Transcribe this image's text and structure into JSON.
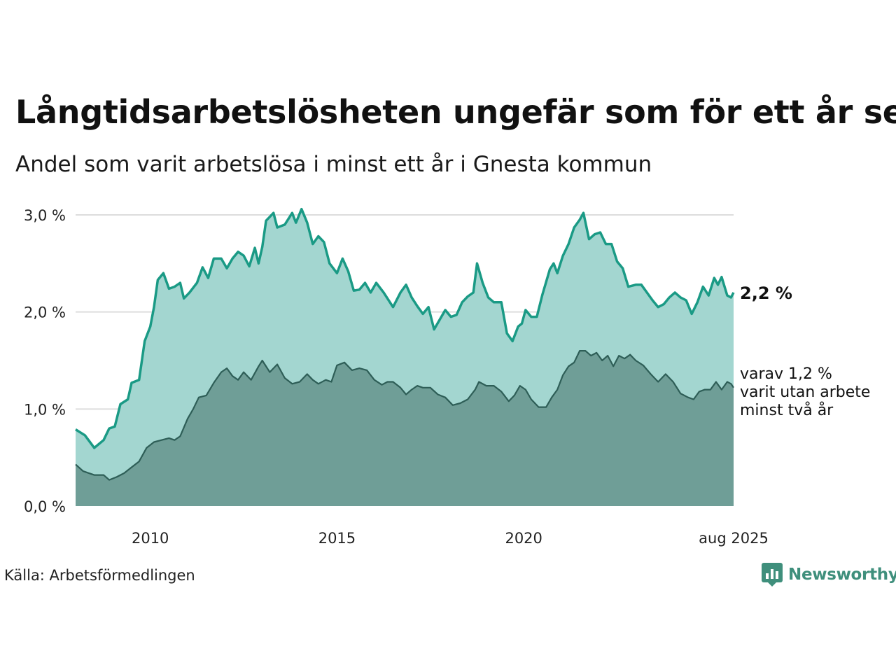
{
  "title": "Långtidsarbetslösheten ungefär som för ett år sen",
  "subtitle": "Andel som varit arbetslösa i minst ett år i Gnesta kommun",
  "source": "Källa: Arbetsförmedlingen",
  "logo_text": "Newsworthy",
  "colors": {
    "series1_line": "#1a9a85",
    "series1_fill": "#a3d6d0",
    "series2_line": "#2e5e57",
    "series2_fill": "#6f9e97",
    "grid": "#dddddd",
    "logo": "#3f8f7c"
  },
  "annotations": {
    "series1_end_label": "2,2 %",
    "series2_end_label_lines": [
      "varav 1,2 %",
      "varit utan arbete",
      "minst två år"
    ]
  },
  "chart_data": {
    "type": "area",
    "x_unit": "year",
    "xlim": [
      2008.0,
      2025.62
    ],
    "ylim": [
      0,
      3.0
    ],
    "y_ticks": [
      0,
      1,
      2,
      3
    ],
    "y_tick_labels": [
      "0,0 %",
      "1,0 %",
      "2,0 %",
      "3,0 %"
    ],
    "x_ticks": [
      2010,
      2015,
      2020,
      2025.62
    ],
    "x_tick_labels": [
      "2010",
      "2015",
      "2020",
      "aug 2025"
    ],
    "grid": true,
    "series": [
      {
        "name": "",
        "points": [
          [
            2008.0,
            0.79
          ],
          [
            2008.25,
            0.73
          ],
          [
            2008.5,
            0.6
          ],
          [
            2008.75,
            0.68
          ],
          [
            2008.9,
            0.8
          ],
          [
            2009.05,
            0.82
          ],
          [
            2009.2,
            1.05
          ],
          [
            2009.4,
            1.1
          ],
          [
            2009.5,
            1.27
          ],
          [
            2009.7,
            1.3
          ],
          [
            2009.85,
            1.7
          ],
          [
            2010.0,
            1.85
          ],
          [
            2010.1,
            2.05
          ],
          [
            2010.2,
            2.33
          ],
          [
            2010.35,
            2.4
          ],
          [
            2010.5,
            2.24
          ],
          [
            2010.65,
            2.26
          ],
          [
            2010.8,
            2.3
          ],
          [
            2010.9,
            2.14
          ],
          [
            2011.05,
            2.2
          ],
          [
            2011.25,
            2.3
          ],
          [
            2011.4,
            2.46
          ],
          [
            2011.55,
            2.35
          ],
          [
            2011.7,
            2.55
          ],
          [
            2011.9,
            2.55
          ],
          [
            2012.05,
            2.45
          ],
          [
            2012.2,
            2.55
          ],
          [
            2012.35,
            2.62
          ],
          [
            2012.5,
            2.58
          ],
          [
            2012.65,
            2.47
          ],
          [
            2012.8,
            2.66
          ],
          [
            2012.9,
            2.5
          ],
          [
            2013.0,
            2.67
          ],
          [
            2013.1,
            2.94
          ],
          [
            2013.3,
            3.02
          ],
          [
            2013.4,
            2.87
          ],
          [
            2013.6,
            2.9
          ],
          [
            2013.8,
            3.02
          ],
          [
            2013.9,
            2.92
          ],
          [
            2014.05,
            3.06
          ],
          [
            2014.2,
            2.92
          ],
          [
            2014.35,
            2.7
          ],
          [
            2014.5,
            2.78
          ],
          [
            2014.65,
            2.72
          ],
          [
            2014.8,
            2.5
          ],
          [
            2015.0,
            2.4
          ],
          [
            2015.15,
            2.55
          ],
          [
            2015.3,
            2.42
          ],
          [
            2015.45,
            2.22
          ],
          [
            2015.6,
            2.23
          ],
          [
            2015.75,
            2.3
          ],
          [
            2015.9,
            2.2
          ],
          [
            2016.05,
            2.3
          ],
          [
            2016.25,
            2.2
          ],
          [
            2016.5,
            2.05
          ],
          [
            2016.7,
            2.2
          ],
          [
            2016.85,
            2.28
          ],
          [
            2017.0,
            2.15
          ],
          [
            2017.15,
            2.06
          ],
          [
            2017.3,
            1.98
          ],
          [
            2017.45,
            2.05
          ],
          [
            2017.6,
            1.82
          ],
          [
            2017.75,
            1.92
          ],
          [
            2017.9,
            2.02
          ],
          [
            2018.05,
            1.95
          ],
          [
            2018.2,
            1.97
          ],
          [
            2018.35,
            2.1
          ],
          [
            2018.5,
            2.16
          ],
          [
            2018.65,
            2.2
          ],
          [
            2018.75,
            2.5
          ],
          [
            2018.9,
            2.3
          ],
          [
            2019.05,
            2.15
          ],
          [
            2019.2,
            2.1
          ],
          [
            2019.4,
            2.1
          ],
          [
            2019.55,
            1.78
          ],
          [
            2019.7,
            1.7
          ],
          [
            2019.85,
            1.85
          ],
          [
            2019.95,
            1.88
          ],
          [
            2020.05,
            2.02
          ],
          [
            2020.2,
            1.95
          ],
          [
            2020.35,
            1.95
          ],
          [
            2020.5,
            2.18
          ],
          [
            2020.7,
            2.44
          ],
          [
            2020.8,
            2.5
          ],
          [
            2020.9,
            2.4
          ],
          [
            2021.05,
            2.58
          ],
          [
            2021.2,
            2.7
          ],
          [
            2021.35,
            2.87
          ],
          [
            2021.5,
            2.95
          ],
          [
            2021.6,
            3.02
          ],
          [
            2021.75,
            2.75
          ],
          [
            2021.9,
            2.8
          ],
          [
            2022.05,
            2.82
          ],
          [
            2022.2,
            2.7
          ],
          [
            2022.35,
            2.7
          ],
          [
            2022.5,
            2.52
          ],
          [
            2022.65,
            2.45
          ],
          [
            2022.8,
            2.26
          ],
          [
            2023.0,
            2.28
          ],
          [
            2023.15,
            2.28
          ],
          [
            2023.3,
            2.2
          ],
          [
            2023.45,
            2.12
          ],
          [
            2023.6,
            2.05
          ],
          [
            2023.75,
            2.08
          ],
          [
            2023.9,
            2.15
          ],
          [
            2024.05,
            2.2
          ],
          [
            2024.2,
            2.15
          ],
          [
            2024.35,
            2.12
          ],
          [
            2024.5,
            1.98
          ],
          [
            2024.65,
            2.1
          ],
          [
            2024.8,
            2.26
          ],
          [
            2024.95,
            2.17
          ],
          [
            2025.1,
            2.35
          ],
          [
            2025.2,
            2.28
          ],
          [
            2025.3,
            2.36
          ],
          [
            2025.45,
            2.17
          ],
          [
            2025.55,
            2.15
          ],
          [
            2025.62,
            2.2
          ]
        ]
      },
      {
        "name": "",
        "points": [
          [
            2008.0,
            0.43
          ],
          [
            2008.2,
            0.36
          ],
          [
            2008.5,
            0.32
          ],
          [
            2008.75,
            0.32
          ],
          [
            2008.9,
            0.27
          ],
          [
            2009.1,
            0.3
          ],
          [
            2009.3,
            0.34
          ],
          [
            2009.5,
            0.4
          ],
          [
            2009.7,
            0.46
          ],
          [
            2009.9,
            0.6
          ],
          [
            2010.1,
            0.66
          ],
          [
            2010.3,
            0.68
          ],
          [
            2010.5,
            0.7
          ],
          [
            2010.65,
            0.68
          ],
          [
            2010.8,
            0.72
          ],
          [
            2011.0,
            0.9
          ],
          [
            2011.15,
            1.0
          ],
          [
            2011.3,
            1.12
          ],
          [
            2011.5,
            1.14
          ],
          [
            2011.7,
            1.27
          ],
          [
            2011.9,
            1.38
          ],
          [
            2012.05,
            1.42
          ],
          [
            2012.2,
            1.34
          ],
          [
            2012.35,
            1.3
          ],
          [
            2012.5,
            1.38
          ],
          [
            2012.7,
            1.3
          ],
          [
            2012.9,
            1.44
          ],
          [
            2013.0,
            1.5
          ],
          [
            2013.2,
            1.38
          ],
          [
            2013.4,
            1.46
          ],
          [
            2013.6,
            1.32
          ],
          [
            2013.8,
            1.26
          ],
          [
            2014.0,
            1.28
          ],
          [
            2014.2,
            1.36
          ],
          [
            2014.35,
            1.3
          ],
          [
            2014.5,
            1.26
          ],
          [
            2014.7,
            1.3
          ],
          [
            2014.85,
            1.28
          ],
          [
            2015.0,
            1.45
          ],
          [
            2015.2,
            1.48
          ],
          [
            2015.4,
            1.4
          ],
          [
            2015.6,
            1.42
          ],
          [
            2015.8,
            1.4
          ],
          [
            2016.0,
            1.3
          ],
          [
            2016.2,
            1.25
          ],
          [
            2016.35,
            1.28
          ],
          [
            2016.5,
            1.28
          ],
          [
            2016.7,
            1.22
          ],
          [
            2016.85,
            1.15
          ],
          [
            2017.0,
            1.2
          ],
          [
            2017.15,
            1.24
          ],
          [
            2017.3,
            1.22
          ],
          [
            2017.5,
            1.22
          ],
          [
            2017.7,
            1.15
          ],
          [
            2017.9,
            1.12
          ],
          [
            2018.1,
            1.04
          ],
          [
            2018.3,
            1.06
          ],
          [
            2018.5,
            1.1
          ],
          [
            2018.7,
            1.2
          ],
          [
            2018.8,
            1.28
          ],
          [
            2019.0,
            1.24
          ],
          [
            2019.2,
            1.24
          ],
          [
            2019.4,
            1.18
          ],
          [
            2019.6,
            1.08
          ],
          [
            2019.75,
            1.14
          ],
          [
            2019.9,
            1.24
          ],
          [
            2020.05,
            1.2
          ],
          [
            2020.2,
            1.1
          ],
          [
            2020.4,
            1.02
          ],
          [
            2020.6,
            1.02
          ],
          [
            2020.75,
            1.12
          ],
          [
            2020.9,
            1.2
          ],
          [
            2021.05,
            1.35
          ],
          [
            2021.2,
            1.44
          ],
          [
            2021.35,
            1.48
          ],
          [
            2021.5,
            1.6
          ],
          [
            2021.65,
            1.6
          ],
          [
            2021.8,
            1.55
          ],
          [
            2021.95,
            1.58
          ],
          [
            2022.1,
            1.5
          ],
          [
            2022.25,
            1.55
          ],
          [
            2022.4,
            1.44
          ],
          [
            2022.55,
            1.55
          ],
          [
            2022.7,
            1.52
          ],
          [
            2022.85,
            1.56
          ],
          [
            2023.0,
            1.5
          ],
          [
            2023.2,
            1.45
          ],
          [
            2023.4,
            1.36
          ],
          [
            2023.6,
            1.28
          ],
          [
            2023.8,
            1.36
          ],
          [
            2024.0,
            1.28
          ],
          [
            2024.2,
            1.16
          ],
          [
            2024.4,
            1.12
          ],
          [
            2024.55,
            1.1
          ],
          [
            2024.7,
            1.18
          ],
          [
            2024.85,
            1.2
          ],
          [
            2025.0,
            1.2
          ],
          [
            2025.15,
            1.28
          ],
          [
            2025.3,
            1.2
          ],
          [
            2025.45,
            1.28
          ],
          [
            2025.55,
            1.26
          ],
          [
            2025.62,
            1.22
          ]
        ]
      }
    ]
  }
}
